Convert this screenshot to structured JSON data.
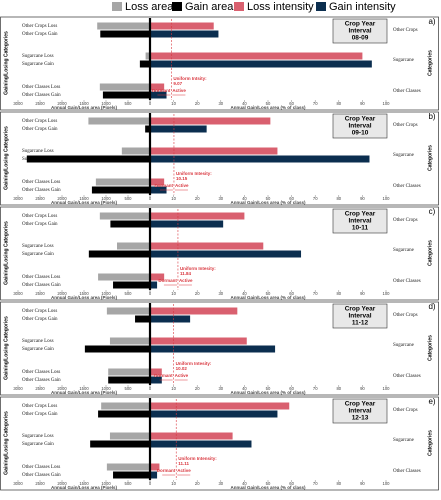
{
  "legend": {
    "items": [
      {
        "label": "Loss area",
        "color": "#a6a6a6"
      },
      {
        "label": "Gain area",
        "color": "#000000"
      },
      {
        "label": "Loss intensity",
        "color": "#d9606f"
      },
      {
        "label": "Gain intensity",
        "color": "#0b2e4f"
      }
    ]
  },
  "chart_data": [
    {
      "type": "bar",
      "panel": "a)",
      "title": "Crop Year",
      "subtitle": "Interval",
      "period": "08-09",
      "y_label": "Gaining/Losing Categories",
      "right_label": "Categories",
      "x_label": "Annual Gain/Loss area (Pixels)",
      "x2_label": "Annual Gain/Loss area (% of class)",
      "categories": [
        "Other Crops Loss",
        "Other Crops Gain",
        "Sugarcane Loss",
        "Sugarcane Gain",
        "Other Classes Loss",
        "Other Classes Gain"
      ],
      "groups": [
        "Other Crops",
        "Sugarcane",
        "Other Classes"
      ],
      "xlim": [
        3000,
        0
      ],
      "xticks": [
        3000,
        2500,
        2000,
        1500,
        1000,
        500,
        0
      ],
      "x2lim": [
        0,
        100
      ],
      "x2ticks": [
        0,
        10,
        20,
        30,
        40,
        50,
        60,
        70,
        80,
        90,
        100
      ],
      "uniform_label": "Uniform Intsity:",
      "uniform_intensity": 9.07,
      "dormant": "Dormant",
      "active": "Active",
      "series": [
        {
          "name": "Loss area",
          "color": "#a6a6a6",
          "axis": "x",
          "values": [
            1200,
            null,
            100,
            null,
            1140,
            null
          ]
        },
        {
          "name": "Gain area",
          "color": "#000000",
          "axis": "x",
          "values": [
            null,
            1130,
            null,
            230,
            null,
            1070
          ]
        },
        {
          "name": "Loss intensity",
          "color": "#d9606f",
          "axis": "x2",
          "values": [
            27,
            null,
            90,
            null,
            6,
            null
          ]
        },
        {
          "name": "Gain intensity",
          "color": "#0b2e4f",
          "axis": "x2",
          "values": [
            null,
            29,
            null,
            94,
            null,
            7
          ]
        }
      ]
    },
    {
      "type": "bar",
      "panel": "b)",
      "title": "Crop Year",
      "subtitle": "Interval",
      "period": "09-10",
      "y_label": "Gaining/Losing Categories",
      "right_label": "Categories",
      "x_label": "Annual Gain/Loss area (Pixels)",
      "x2_label": "Annual Gain/Loss area (% of class)",
      "categories": [
        "Other Crops Loss",
        "Other Crops Gain",
        "Sugarcane Loss",
        "Sugarcane Gain",
        "Other Classes Loss",
        "Other Classes Gain"
      ],
      "groups": [
        "Other Crops",
        "Sugarcane",
        "Other Classes"
      ],
      "xlim": [
        3000,
        0
      ],
      "xticks": [
        3000,
        2500,
        2000,
        1500,
        1000,
        500,
        0
      ],
      "x2lim": [
        0,
        100
      ],
      "x2ticks": [
        0,
        10,
        20,
        30,
        40,
        50,
        60,
        70,
        80,
        90,
        100
      ],
      "uniform_label": "Uniform Intesity:",
      "uniform_intensity": 10.15,
      "dormant": "Dormant",
      "active": "Active",
      "series": [
        {
          "name": "Loss area",
          "color": "#a6a6a6",
          "axis": "x",
          "values": [
            1400,
            null,
            640,
            null,
            1230,
            null
          ]
        },
        {
          "name": "Gain area",
          "color": "#000000",
          "axis": "x",
          "values": [
            null,
            110,
            null,
            2800,
            null,
            1320
          ]
        },
        {
          "name": "Loss intensity",
          "color": "#d9606f",
          "axis": "x2",
          "values": [
            51,
            null,
            54,
            null,
            6,
            null
          ]
        },
        {
          "name": "Gain intensity",
          "color": "#0b2e4f",
          "axis": "x2",
          "values": [
            null,
            24,
            null,
            93,
            null,
            7
          ]
        }
      ]
    },
    {
      "type": "bar",
      "panel": "c)",
      "title": "Crop Year",
      "subtitle": "Interval",
      "period": "10-11",
      "y_label": "Gaining/Losing Categories",
      "right_label": "Categories",
      "x_label": "Annual Gain/Loss area (Pixels)",
      "x2_label": "Annual Gain/Loss area (% of class)",
      "categories": [
        "Other Crops Loss",
        "Other Crops Gain",
        "Sugarcane Loss",
        "Sugarcane Gain",
        "Other Classes Loss",
        "Other Classes Gain"
      ],
      "groups": [
        "Other Crops",
        "Sugarcane",
        "Other Classes"
      ],
      "xlim": [
        3000,
        0
      ],
      "xticks": [
        3000,
        2500,
        2000,
        1500,
        1000,
        500,
        0
      ],
      "x2lim": [
        0,
        100
      ],
      "x2ticks": [
        0,
        10,
        20,
        30,
        40,
        50,
        60,
        70,
        80,
        90,
        100
      ],
      "uniform_label": "Uniform Intesity:",
      "uniform_intensity": 11.84,
      "dormant": "Dormant",
      "active": "Active",
      "series": [
        {
          "name": "Loss area",
          "color": "#a6a6a6",
          "axis": "x",
          "values": [
            1140,
            null,
            750,
            null,
            1180,
            null
          ]
        },
        {
          "name": "Gain area",
          "color": "#000000",
          "axis": "x",
          "values": [
            null,
            900,
            null,
            1390,
            null,
            840
          ]
        },
        {
          "name": "Loss intensity",
          "color": "#d9606f",
          "axis": "x2",
          "values": [
            40,
            null,
            48,
            null,
            6,
            null
          ]
        },
        {
          "name": "Gain intensity",
          "color": "#0b2e4f",
          "axis": "x2",
          "values": [
            null,
            31,
            null,
            64,
            null,
            3
          ]
        }
      ]
    },
    {
      "type": "bar",
      "panel": "d)",
      "title": "Crop Year",
      "subtitle": "Interval",
      "period": "11-12",
      "y_label": "Gaining/Losing Categories",
      "right_label": "Categories",
      "x_label": "Annual Gain/Loss area (Pixels)",
      "x2_label": "Annual Gain/Loss area (% of class)",
      "categories": [
        "Other Crops Loss",
        "Other Crops Gain",
        "Sugarcane Loss",
        "Sugarcane Gain",
        "Other Classes Loss",
        "Other Classes Gain"
      ],
      "groups": [
        "Other Crops",
        "Sugarcane",
        "Other Classes"
      ],
      "xlim": [
        3000,
        0
      ],
      "xticks": [
        3000,
        2500,
        2000,
        1500,
        1000,
        500,
        0
      ],
      "x2lim": [
        0,
        100
      ],
      "x2ticks": [
        0,
        10,
        20,
        30,
        40,
        50,
        60,
        70,
        80,
        90,
        100
      ],
      "uniform_label": "Uniform Intesity:",
      "uniform_intensity": 10.02,
      "dormant": "Dormant",
      "active": "Active",
      "series": [
        {
          "name": "Loss area",
          "color": "#a6a6a6",
          "axis": "x",
          "values": [
            980,
            null,
            910,
            null,
            950,
            null
          ]
        },
        {
          "name": "Gain area",
          "color": "#000000",
          "axis": "x",
          "values": [
            null,
            340,
            null,
            1480,
            null,
            950
          ]
        },
        {
          "name": "Loss intensity",
          "color": "#d9606f",
          "axis": "x2",
          "values": [
            37,
            null,
            41,
            null,
            5,
            null
          ]
        },
        {
          "name": "Gain intensity",
          "color": "#0b2e4f",
          "axis": "x2",
          "values": [
            null,
            17,
            null,
            53,
            null,
            5
          ]
        }
      ]
    },
    {
      "type": "bar",
      "panel": "e)",
      "title": "Crop Year",
      "subtitle": "Interval",
      "period": "12-13",
      "y_label": "Gaining/Losing Categories",
      "right_label": "Categories",
      "x_label": "Annual Gain/Loss area (Pixels)",
      "x2_label": "Annual Gain/Loss area (% of class)",
      "categories": [
        "Other Crops Loss",
        "Other Crops Gain",
        "Sugarcane Loss",
        "Sugarcane Gain",
        "Other Classes Loss",
        "Other Classes Gain"
      ],
      "groups": [
        "Other Crops",
        "Sugarcane",
        "Other Classes"
      ],
      "xlim": [
        3000,
        0
      ],
      "xticks": [
        3000,
        2500,
        2000,
        1500,
        1000,
        500,
        0
      ],
      "x2lim": [
        0,
        100
      ],
      "x2ticks": [
        0,
        10,
        20,
        30,
        40,
        50,
        60,
        70,
        80,
        90,
        100
      ],
      "uniform_label": "Uniform Intensity:",
      "uniform_intensity": 11.11,
      "dormant": "Dormant",
      "active": "Active",
      "series": [
        {
          "name": "Loss area",
          "color": "#a6a6a6",
          "axis": "x",
          "values": [
            1110,
            null,
            910,
            null,
            980,
            null
          ]
        },
        {
          "name": "Gain area",
          "color": "#000000",
          "axis": "x",
          "values": [
            null,
            1180,
            null,
            1360,
            null,
            840
          ]
        },
        {
          "name": "Loss intensity",
          "color": "#d9606f",
          "axis": "x2",
          "values": [
            59,
            null,
            35,
            null,
            4,
            null
          ]
        },
        {
          "name": "Gain intensity",
          "color": "#0b2e4f",
          "axis": "x2",
          "values": [
            null,
            54,
            null,
            43,
            null,
            3
          ]
        }
      ]
    }
  ]
}
